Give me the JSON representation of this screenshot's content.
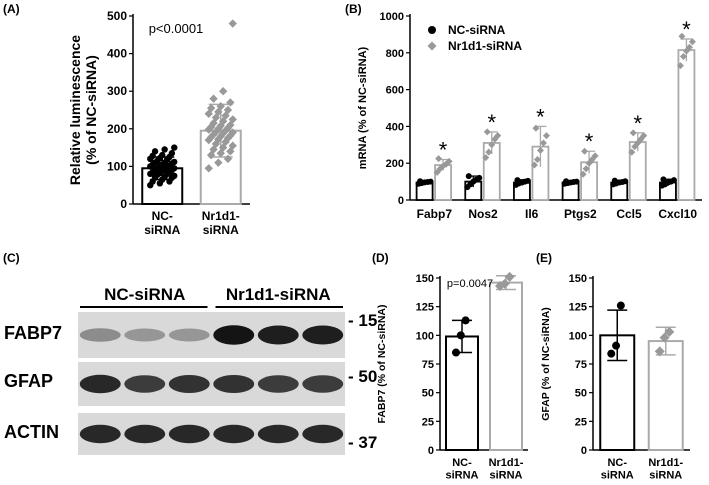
{
  "panels": {
    "A": {
      "letter": "(A)"
    },
    "B": {
      "letter": "(B)"
    },
    "C": {
      "letter": "(C)"
    },
    "D": {
      "letter": "(D)"
    },
    "E": {
      "letter": "(E)"
    }
  },
  "colors": {
    "nc": "#000000",
    "nr": "#999999",
    "nr_box": "#aaaaaa"
  },
  "blot": {
    "group_labels": [
      "NC-siRNA",
      "Nr1d1-siRNA"
    ],
    "rows": [
      {
        "label": "FABP7",
        "marker": "- 15",
        "intensities": [
          0.35,
          0.3,
          0.3,
          0.95,
          0.9,
          0.9
        ]
      },
      {
        "label": "GFAP",
        "marker": "- 50",
        "intensities": [
          0.85,
          0.75,
          0.8,
          0.8,
          0.75,
          0.75
        ]
      },
      {
        "label": "ACTIN",
        "marker": "- 37",
        "intensities": [
          0.85,
          0.85,
          0.85,
          0.85,
          0.85,
          0.85
        ]
      }
    ]
  },
  "chart_data": [
    {
      "panel": "A",
      "type": "bar",
      "categories": [
        "NC-\nsiRNA",
        "Nr1d1-\nsiRNA"
      ],
      "values": [
        95,
        195
      ],
      "errors": [
        30,
        70
      ],
      "ylabel": "Relative luminescence\n(% of NC-siRNA)",
      "ylim": [
        0,
        500
      ],
      "yticks": [
        0,
        100,
        200,
        300,
        400,
        500
      ],
      "annotation": "p<0.0001",
      "points": [
        [
          50,
          55,
          60,
          60,
          65,
          70,
          70,
          72,
          75,
          78,
          80,
          80,
          82,
          85,
          85,
          88,
          90,
          90,
          92,
          95,
          95,
          98,
          100,
          100,
          102,
          105,
          105,
          108,
          110,
          110,
          112,
          115,
          118,
          120,
          122,
          125,
          128,
          130,
          135,
          140,
          145,
          150
        ],
        [
          95,
          110,
          120,
          130,
          135,
          140,
          145,
          150,
          155,
          160,
          165,
          170,
          172,
          175,
          178,
          180,
          182,
          185,
          188,
          190,
          192,
          195,
          198,
          200,
          202,
          205,
          208,
          210,
          215,
          220,
          225,
          230,
          235,
          240,
          245,
          250,
          255,
          260,
          270,
          280,
          300,
          480
        ]
      ]
    },
    {
      "panel": "B",
      "type": "bar",
      "categories": [
        "Fabp7",
        "Nos2",
        "Il6",
        "Ptgs2",
        "Ccl5",
        "Cxcl10"
      ],
      "series": [
        {
          "name": "NC-siRNA",
          "values": [
            95,
            100,
            95,
            95,
            95,
            95
          ],
          "errors": [
            8,
            30,
            15,
            8,
            12,
            18
          ],
          "points": [
            [
              88,
              92,
              96,
              98,
              100,
              102
            ],
            [
              70,
              85,
              100,
              110,
              120,
              130
            ],
            [
              82,
              90,
              95,
              100,
              104,
              108
            ],
            [
              88,
              92,
              95,
              98,
              100,
              102
            ],
            [
              85,
              90,
              95,
              98,
              102,
              105
            ],
            [
              78,
              85,
              95,
              100,
              108,
              112
            ]
          ]
        },
        {
          "name": "Nr1d1-siRNA",
          "values": [
            190,
            310,
            290,
            205,
            315,
            815
          ],
          "errors": [
            30,
            60,
            110,
            60,
            50,
            60
          ],
          "points": [
            [
              150,
              170,
              185,
              195,
              210,
              225
            ],
            [
              230,
              260,
              300,
              330,
              350,
              370
            ],
            [
              190,
              220,
              270,
              310,
              350,
              390
            ],
            [
              140,
              170,
              200,
              220,
              240,
              265
            ],
            [
              260,
              290,
              310,
              330,
              350,
              365
            ],
            [
              730,
              780,
              810,
              830,
              860,
              890
            ]
          ]
        }
      ],
      "ylabel": "mRNA (% of NC-siRNA)",
      "ylim": [
        0,
        1000
      ],
      "yticks": [
        0,
        200,
        400,
        600,
        800,
        1000
      ],
      "significance": [
        "*",
        "*",
        "*",
        "*",
        "*",
        "*"
      ],
      "legend_position": "top-left"
    },
    {
      "panel": "D",
      "type": "bar",
      "categories": [
        "NC-\nsiRNA",
        "Nr1d1-\nsiRNA"
      ],
      "values": [
        99,
        146
      ],
      "errors": [
        14,
        6
      ],
      "points": [
        [
          85,
          100,
          113
        ],
        [
          143,
          145,
          151
        ]
      ],
      "ylabel": "FABP7 (% of NC-siRNA)",
      "ylim": [
        0,
        150
      ],
      "yticks": [
        0,
        25,
        50,
        75,
        100,
        125,
        150
      ],
      "annotation": "p=0.0047"
    },
    {
      "panel": "E",
      "type": "bar",
      "categories": [
        "NC-\nsiRNA",
        "Nr1d1-\nsiRNA"
      ],
      "values": [
        100,
        95
      ],
      "errors": [
        22,
        12
      ],
      "points": [
        [
          84,
          91,
          126
        ],
        [
          86,
          98,
          103
        ]
      ],
      "ylabel": "GFAP (% of NC-siRNA)",
      "ylim": [
        0,
        150
      ],
      "yticks": [
        0,
        25,
        50,
        75,
        100,
        125,
        150
      ]
    }
  ]
}
